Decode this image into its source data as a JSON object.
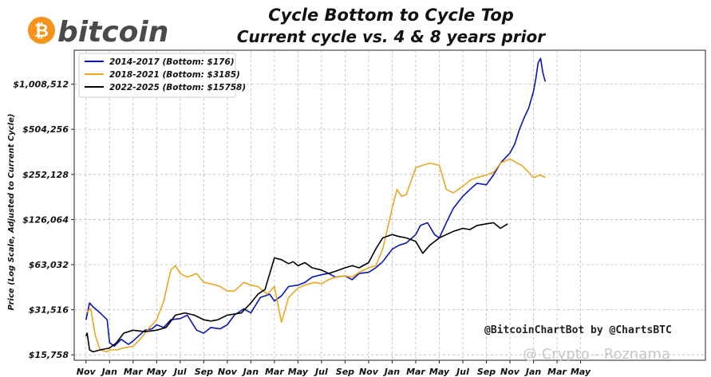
{
  "logo": {
    "text": "bitcoin",
    "symbol": "₿",
    "color": "#f7931a"
  },
  "credit": "@BitcoinChartBot by @ChartsBTC",
  "watermark": "@ Crypto - Roznama",
  "chart_data": {
    "type": "line",
    "title": "Cycle Bottom to Cycle Top",
    "subtitle": "Current cycle vs. 4 & 8 years prior",
    "ylabel": "Price (Log Scale, Adjusted to Current Cycle)",
    "yscale": "log",
    "ylim": [
      14500,
      1700000
    ],
    "yticks": [
      15758,
      31516,
      63032,
      126064,
      252128,
      504256,
      1008512
    ],
    "ytick_labels": [
      "$15,758",
      "$31,516",
      "$63,032",
      "$126,064",
      "$252,128",
      "$504,256",
      "$1,008,512"
    ],
    "xlim": [
      -0.5,
      26.3
    ],
    "xticks": [
      0,
      1,
      2,
      3,
      4,
      5,
      6,
      7,
      8,
      9,
      10,
      11,
      12,
      13,
      14,
      15,
      16,
      17,
      18,
      19,
      20,
      21
    ],
    "xtick_labels": [
      "Nov",
      "Jan",
      "Mar",
      "May",
      "Jul",
      "Sep",
      "Nov",
      "Jan",
      "Mar",
      "May",
      "Jul",
      "Sep",
      "Nov",
      "Jan",
      "Mar",
      "May",
      "Jul",
      "Sep",
      "Nov",
      "Jan",
      "Mar",
      "May"
    ],
    "grid": true,
    "legend_position": "top-left",
    "series": [
      {
        "name": "2014-2017 (Bottom: $176)",
        "color": "#0a14b4",
        "x": [
          0,
          0.15,
          0.3,
          0.6,
          0.9,
          1.0,
          1.2,
          1.5,
          1.8,
          2.0,
          2.3,
          2.5,
          2.8,
          3.0,
          3.3,
          3.6,
          4.0,
          4.3,
          4.7,
          5.0,
          5.3,
          5.7,
          6.0,
          6.3,
          6.7,
          7.0,
          7.4,
          7.8,
          8.0,
          8.3,
          8.6,
          9.0,
          9.3,
          9.6,
          10.0,
          10.3,
          10.6,
          11.0,
          11.3,
          11.6,
          12.0,
          12.3,
          12.6,
          13.0,
          13.3,
          13.6,
          14.0,
          14.2,
          14.5,
          14.8,
          15.0,
          15.3,
          15.6,
          16.0,
          16.3,
          16.6,
          17.0,
          17.3,
          17.6,
          18.0,
          18.2,
          18.4,
          18.6,
          18.8,
          19.0,
          19.1,
          19.2,
          19.3,
          19.4,
          19.5
        ],
        "values": [
          27000,
          35000,
          33000,
          30000,
          27000,
          19000,
          18000,
          20000,
          18500,
          19500,
          21500,
          23000,
          23500,
          25000,
          24000,
          27000,
          27500,
          29000,
          23000,
          22000,
          24000,
          23500,
          25000,
          29000,
          32000,
          30000,
          38000,
          40000,
          36000,
          39000,
          45000,
          46000,
          48000,
          52000,
          54000,
          55000,
          52000,
          53000,
          50000,
          55000,
          56000,
          60000,
          66000,
          80000,
          85000,
          88000,
          100000,
          115000,
          120000,
          100000,
          95000,
          120000,
          150000,
          180000,
          200000,
          220000,
          215000,
          250000,
          300000,
          350000,
          400000,
          500000,
          600000,
          700000,
          900000,
          1100000,
          1400000,
          1500000,
          1200000,
          1050000
        ]
      },
      {
        "name": "2018-2021 (Bottom: $3185)",
        "color": "#e8a820",
        "x": [
          0,
          0.2,
          0.4,
          0.6,
          0.9,
          1.0,
          1.3,
          1.6,
          2.0,
          2.3,
          2.6,
          3.0,
          3.3,
          3.6,
          3.8,
          4.0,
          4.3,
          4.7,
          5.0,
          5.3,
          5.7,
          6.0,
          6.3,
          6.7,
          7.0,
          7.3,
          7.7,
          8.0,
          8.3,
          8.6,
          9.0,
          9.3,
          9.7,
          10.0,
          10.3,
          10.6,
          11.0,
          11.3,
          11.6,
          12.0,
          12.3,
          12.6,
          13.0,
          13.2,
          13.4,
          13.6,
          14.0,
          14.3,
          14.6,
          15.0,
          15.3,
          15.6,
          16.0,
          16.3,
          16.6,
          17.0,
          17.3,
          17.6,
          18.0,
          18.3,
          18.5,
          18.7,
          19.0,
          19.3,
          19.5
        ],
        "values": [
          30000,
          32000,
          21000,
          17000,
          16500,
          17000,
          17000,
          17500,
          18000,
          20000,
          23000,
          27000,
          36000,
          58000,
          62000,
          55000,
          52000,
          55000,
          48000,
          47000,
          45000,
          42000,
          42000,
          48000,
          46000,
          45000,
          40000,
          45000,
          26000,
          38000,
          44000,
          46000,
          48000,
          47000,
          50000,
          52000,
          53000,
          52000,
          56000,
          60000,
          62000,
          80000,
          150000,
          200000,
          180000,
          185000,
          280000,
          290000,
          300000,
          290000,
          200000,
          190000,
          210000,
          230000,
          240000,
          250000,
          260000,
          300000,
          320000,
          300000,
          290000,
          270000,
          240000,
          250000,
          240000
        ]
      },
      {
        "name": "2022-2025 (Bottom: $15758)",
        "color": "#000000",
        "x": [
          0,
          0.05,
          0.15,
          0.3,
          0.6,
          1.0,
          1.3,
          1.6,
          2.0,
          2.5,
          3.0,
          3.4,
          3.8,
          4.2,
          4.6,
          5.0,
          5.3,
          5.6,
          6.0,
          6.3,
          6.6,
          7.0,
          7.3,
          7.6,
          8.0,
          8.3,
          8.6,
          8.8,
          9.0,
          9.3,
          9.6,
          10.0,
          10.3,
          10.6,
          11.0,
          11.3,
          11.6,
          12.0,
          12.3,
          12.6,
          13.0,
          13.3,
          13.6,
          14.0,
          14.3,
          14.6,
          15.0,
          15.3,
          15.6,
          16.0,
          16.3,
          16.6,
          17.0,
          17.3,
          17.6,
          17.9
        ],
        "values": [
          21000,
          22000,
          17000,
          16500,
          17000,
          17500,
          19000,
          22000,
          23000,
          22500,
          23000,
          24000,
          29000,
          30000,
          29000,
          27000,
          26500,
          27000,
          29000,
          29500,
          30000,
          35000,
          40000,
          43000,
          70000,
          68000,
          64000,
          66000,
          62000,
          65000,
          60000,
          58000,
          55000,
          57000,
          60000,
          62000,
          60000,
          65000,
          80000,
          95000,
          100000,
          97000,
          95000,
          90000,
          75000,
          85000,
          95000,
          100000,
          105000,
          110000,
          108000,
          115000,
          118000,
          120000,
          110000,
          118000
        ]
      }
    ]
  }
}
